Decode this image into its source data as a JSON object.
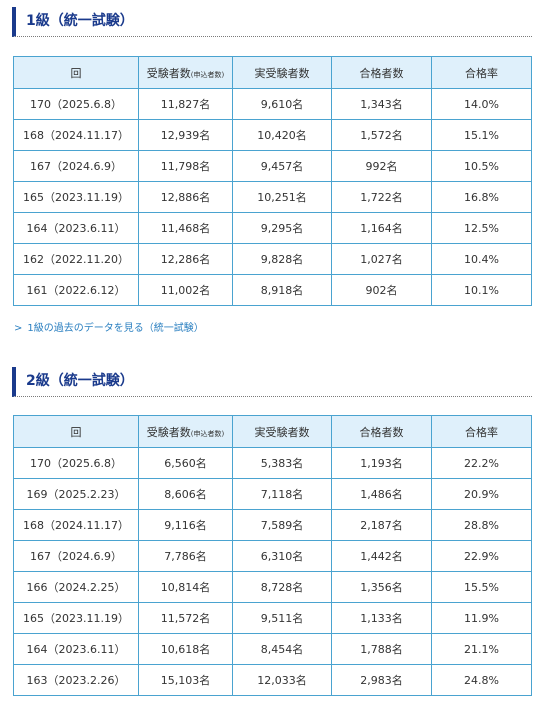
{
  "sections": [
    {
      "title": "1級（統一試験）",
      "headers": {
        "round": "回",
        "applicants": "受験者数",
        "applicants_note": "(申込者数)",
        "examinees": "実受験者数",
        "passers": "合格者数",
        "pass_rate": "合格率"
      },
      "rows": [
        [
          "170（2025.6.8）",
          "11,827名",
          "9,610名",
          "1,343名",
          "14.0%"
        ],
        [
          "168（2024.11.17）",
          "12,939名",
          "10,420名",
          "1,572名",
          "15.1%"
        ],
        [
          "167（2024.6.9）",
          "11,798名",
          "9,457名",
          "992名",
          "10.5%"
        ],
        [
          "165（2023.11.19）",
          "12,886名",
          "10,251名",
          "1,722名",
          "16.8%"
        ],
        [
          "164（2023.6.11）",
          "11,468名",
          "9,295名",
          "1,164名",
          "12.5%"
        ],
        [
          "162（2022.11.20）",
          "12,286名",
          "9,828名",
          "1,027名",
          "10.4%"
        ],
        [
          "161（2022.6.12）",
          "11,002名",
          "8,918名",
          "902名",
          "10.1%"
        ]
      ],
      "link": {
        "icon": "chevron-right-icon",
        "label": "1級の過去のデータを見る（統一試験）"
      }
    },
    {
      "title": "2級（統一試験）",
      "headers": {
        "round": "回",
        "applicants": "受験者数",
        "applicants_note": "(申込者数)",
        "examinees": "実受験者数",
        "passers": "合格者数",
        "pass_rate": "合格率"
      },
      "rows": [
        [
          "170（2025.6.8）",
          "6,560名",
          "5,383名",
          "1,193名",
          "22.2%"
        ],
        [
          "169（2025.2.23）",
          "8,606名",
          "7,118名",
          "1,486名",
          "20.9%"
        ],
        [
          "168（2024.11.17）",
          "9,116名",
          "7,589名",
          "2,187名",
          "28.8%"
        ],
        [
          "167（2024.6.9）",
          "7,786名",
          "6,310名",
          "1,442名",
          "22.9%"
        ],
        [
          "166（2024.2.25）",
          "10,814名",
          "8,728名",
          "1,356名",
          "15.5%"
        ],
        [
          "165（2023.11.19）",
          "11,572名",
          "9,511名",
          "1,133名",
          "11.9%"
        ],
        [
          "164（2023.6.11）",
          "10,618名",
          "8,454名",
          "1,788名",
          "21.1%"
        ],
        [
          "163（2023.2.26）",
          "15,103名",
          "12,033名",
          "2,983名",
          "24.8%"
        ]
      ]
    }
  ],
  "colors": {
    "heading": "#1a3a8c",
    "table_border": "#4aa3d0",
    "header_bg": "#dff0fb",
    "link": "#2a7fc0"
  }
}
